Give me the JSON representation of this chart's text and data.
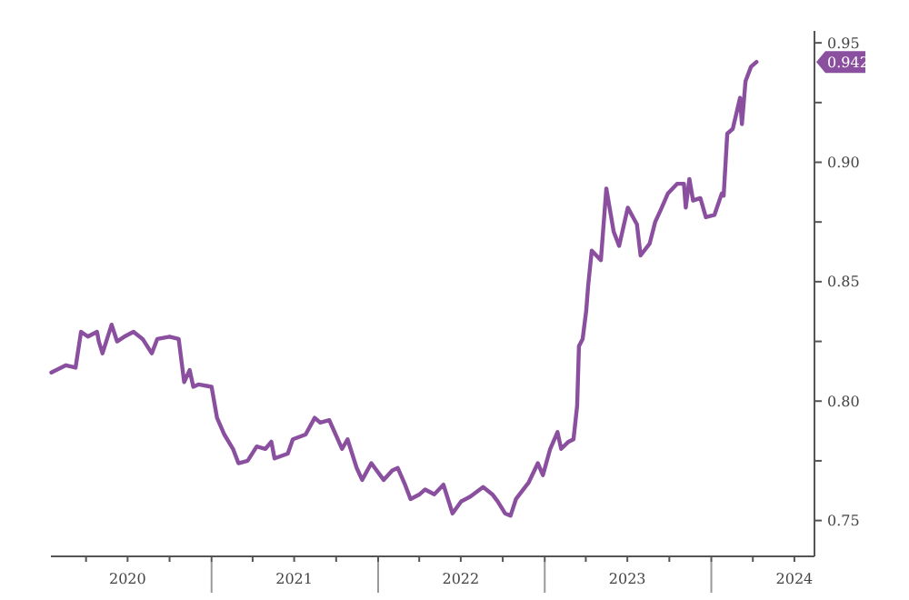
{
  "chart_data": {
    "type": "line",
    "x": [
      "2020-01-16",
      "2020-02-17",
      "2020-03-09",
      "2020-03-21",
      "2020-04-05",
      "2020-04-25",
      "2020-04-29",
      "2020-05-07",
      "2020-05-27",
      "2020-06-08",
      "2020-06-24",
      "2020-07-14",
      "2020-08-03",
      "2020-08-23",
      "2020-09-04",
      "2020-10-01",
      "2020-10-21",
      "2020-11-02",
      "2020-11-14",
      "2020-11-22",
      "2020-12-04",
      "2021-01-01",
      "2021-01-13",
      "2021-01-29",
      "2021-02-17",
      "2021-03-01",
      "2021-03-21",
      "2021-04-10",
      "2021-04-29",
      "2021-05-12",
      "2021-05-19",
      "2021-06-17",
      "2021-06-28",
      "2021-07-26",
      "2021-08-15",
      "2021-08-27",
      "2021-09-16",
      "2021-10-14",
      "2021-10-26",
      "2021-11-15",
      "2021-11-27",
      "2021-12-17",
      "2022-01-13",
      "2022-02-01",
      "2022-02-13",
      "2022-03-01",
      "2022-03-13",
      "2022-04-02",
      "2022-04-14",
      "2022-05-04",
      "2022-05-24",
      "2022-06-13",
      "2022-07-02",
      "2022-07-22",
      "2022-08-19",
      "2022-09-08",
      "2022-09-20",
      "2022-10-06",
      "2022-10-18",
      "2022-10-30",
      "2022-11-27",
      "2022-12-17",
      "2022-12-28",
      "2023-01-13",
      "2023-01-29",
      "2023-02-06",
      "2023-02-22",
      "2023-03-05",
      "2023-03-13",
      "2023-03-17",
      "2023-03-25",
      "2023-04-02",
      "2023-04-06",
      "2023-04-14",
      "2023-05-04",
      "2023-05-16",
      "2023-06-01",
      "2023-06-13",
      "2023-07-02",
      "2023-07-22",
      "2023-07-30",
      "2023-08-19",
      "2023-08-31",
      "2023-09-12",
      "2023-09-28",
      "2023-10-18",
      "2023-11-02",
      "2023-11-06",
      "2023-11-14",
      "2023-11-22",
      "2023-12-08",
      "2023-12-20",
      "2024-01-08",
      "2024-01-24",
      "2024-01-28",
      "2024-02-05",
      "2024-02-17",
      "2024-03-04",
      "2024-03-08",
      "2024-03-16",
      "2024-03-28",
      "2024-04-09"
    ],
    "series": [
      {
        "color": "#8a4f9e",
        "values": [
          0.812,
          0.815,
          0.814,
          0.829,
          0.827,
          0.829,
          0.825,
          0.82,
          0.832,
          0.825,
          0.827,
          0.829,
          0.826,
          0.82,
          0.826,
          0.827,
          0.826,
          0.808,
          0.813,
          0.806,
          0.807,
          0.806,
          0.793,
          0.786,
          0.78,
          0.774,
          0.775,
          0.781,
          0.78,
          0.783,
          0.776,
          0.778,
          0.784,
          0.786,
          0.793,
          0.791,
          0.792,
          0.78,
          0.784,
          0.772,
          0.767,
          0.774,
          0.767,
          0.771,
          0.772,
          0.765,
          0.759,
          0.761,
          0.763,
          0.761,
          0.765,
          0.753,
          0.758,
          0.76,
          0.764,
          0.761,
          0.758,
          0.753,
          0.752,
          0.759,
          0.766,
          0.774,
          0.769,
          0.78,
          0.787,
          0.78,
          0.783,
          0.784,
          0.798,
          0.823,
          0.826,
          0.838,
          0.848,
          0.863,
          0.859,
          0.889,
          0.871,
          0.865,
          0.881,
          0.874,
          0.861,
          0.866,
          0.875,
          0.88,
          0.887,
          0.891,
          0.891,
          0.881,
          0.893,
          0.884,
          0.885,
          0.877,
          0.878,
          0.887,
          0.886,
          0.912,
          0.914,
          0.927,
          0.916,
          0.934,
          0.94,
          0.942
        ]
      }
    ],
    "xlim": [
      "2020-01-15",
      "2024-08-14"
    ],
    "xticks": [
      {
        "value": "2020-04-01",
        "label": null
      },
      {
        "value": "2020-07-01",
        "label": "2020"
      },
      {
        "value": "2020-10-01",
        "label": null
      },
      {
        "value": "2021-01-01",
        "label": null
      },
      {
        "value": "2021-04-01",
        "label": null
      },
      {
        "value": "2021-07-01",
        "label": "2021"
      },
      {
        "value": "2021-10-01",
        "label": null
      },
      {
        "value": "2022-01-01",
        "label": null
      },
      {
        "value": "2022-04-01",
        "label": null
      },
      {
        "value": "2022-07-01",
        "label": "2022"
      },
      {
        "value": "2022-10-01",
        "label": null
      },
      {
        "value": "2023-01-01",
        "label": null
      },
      {
        "value": "2023-04-01",
        "label": null
      },
      {
        "value": "2023-07-01",
        "label": "2023"
      },
      {
        "value": "2023-10-01",
        "label": null
      },
      {
        "value": "2024-01-01",
        "label": null
      },
      {
        "value": "2024-04-01",
        "label": null
      },
      {
        "value": "2024-07-01",
        "label": "2024"
      }
    ],
    "ylim": [
      0.735,
      0.955
    ],
    "yticks": [
      {
        "value": 0.75,
        "label": "0.75"
      },
      {
        "value": 0.775,
        "label": null
      },
      {
        "value": 0.8,
        "label": "0.80"
      },
      {
        "value": 0.825,
        "label": null
      },
      {
        "value": 0.85,
        "label": "0.85"
      },
      {
        "value": 0.875,
        "label": null
      },
      {
        "value": 0.9,
        "label": "0.90"
      },
      {
        "value": 0.925,
        "label": null
      },
      {
        "value": 0.95,
        "label": "0.95"
      }
    ],
    "annotations": [
      "0.942"
    ],
    "grid": false,
    "marker": "none",
    "line_style": "solid"
  }
}
